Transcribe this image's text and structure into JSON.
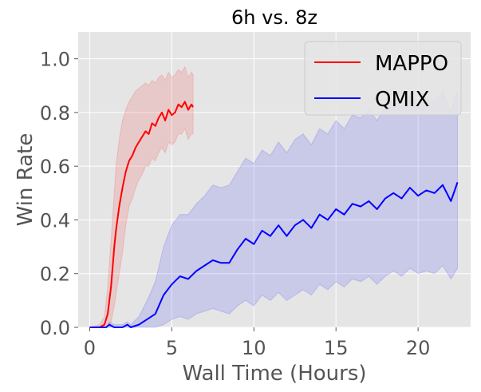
{
  "chart_data": {
    "type": "line",
    "title": "6h vs. 8z",
    "xlabel": "Wall Time (Hours)",
    "ylabel": "Win Rate",
    "xlim": [
      -0.7,
      23.2
    ],
    "ylim": [
      0.0,
      1.1
    ],
    "xticks": [
      0,
      5,
      10,
      15,
      20
    ],
    "yticks": [
      0.0,
      0.2,
      0.4,
      0.6,
      0.8,
      1.0
    ],
    "xtick_labels": [
      "0",
      "5",
      "10",
      "15",
      "20"
    ],
    "ytick_labels": [
      "0.0",
      "0.2",
      "0.4",
      "0.6",
      "0.8",
      "1.0"
    ],
    "grid": true,
    "legend_position": "top-right",
    "colors": {
      "background": "#e5e5e5",
      "grid": "#ffffff",
      "MAPPO": "#ff0000",
      "QMIX": "#0000ff"
    },
    "series": [
      {
        "name": "MAPPO",
        "color": "#ff0000",
        "band_color": "#ff0000",
        "x": [
          0,
          0.6,
          0.9,
          1.1,
          1.3,
          1.5,
          1.6,
          1.8,
          2.0,
          2.2,
          2.4,
          2.6,
          2.8,
          3.0,
          3.2,
          3.4,
          3.6,
          3.8,
          4.0,
          4.2,
          4.4,
          4.6,
          4.8,
          5.0,
          5.2,
          5.4,
          5.6,
          5.8,
          6.0,
          6.2,
          6.3
        ],
        "y": [
          0,
          0,
          0.01,
          0.05,
          0.15,
          0.3,
          0.36,
          0.45,
          0.52,
          0.58,
          0.62,
          0.64,
          0.67,
          0.69,
          0.71,
          0.73,
          0.72,
          0.76,
          0.75,
          0.78,
          0.8,
          0.77,
          0.81,
          0.79,
          0.8,
          0.83,
          0.82,
          0.84,
          0.81,
          0.83,
          0.82
        ],
        "lower": [
          0,
          0,
          0,
          0,
          0.02,
          0.08,
          0.12,
          0.2,
          0.28,
          0.38,
          0.45,
          0.48,
          0.52,
          0.55,
          0.57,
          0.6,
          0.6,
          0.63,
          0.62,
          0.65,
          0.67,
          0.65,
          0.69,
          0.68,
          0.69,
          0.72,
          0.72,
          0.74,
          0.7,
          0.72,
          0.72
        ],
        "upper": [
          0,
          0.01,
          0.04,
          0.15,
          0.32,
          0.5,
          0.6,
          0.7,
          0.77,
          0.81,
          0.84,
          0.86,
          0.88,
          0.89,
          0.9,
          0.91,
          0.9,
          0.92,
          0.91,
          0.93,
          0.94,
          0.92,
          0.95,
          0.93,
          0.94,
          0.96,
          0.95,
          0.97,
          0.93,
          0.95,
          0.94
        ]
      },
      {
        "name": "QMIX",
        "color": "#0000ff",
        "band_color": "#0000ff",
        "x": [
          0,
          1.0,
          1.2,
          1.5,
          2.0,
          2.3,
          2.5,
          3.0,
          3.5,
          4.0,
          4.5,
          5.0,
          5.5,
          6.0,
          6.5,
          7.0,
          7.5,
          8.0,
          8.5,
          9.0,
          9.5,
          10.0,
          10.5,
          11.0,
          11.5,
          12.0,
          12.5,
          13.0,
          13.5,
          14.0,
          14.5,
          15.0,
          15.5,
          16.0,
          16.5,
          17.0,
          17.5,
          18.0,
          18.5,
          19.0,
          19.5,
          20.0,
          20.5,
          21.0,
          21.5,
          22.0,
          22.4
        ],
        "y": [
          0,
          0,
          0.01,
          0,
          0,
          0.01,
          0,
          0.01,
          0.03,
          0.05,
          0.12,
          0.16,
          0.19,
          0.18,
          0.21,
          0.23,
          0.25,
          0.24,
          0.24,
          0.29,
          0.33,
          0.31,
          0.36,
          0.34,
          0.38,
          0.34,
          0.38,
          0.4,
          0.37,
          0.42,
          0.4,
          0.44,
          0.42,
          0.46,
          0.45,
          0.47,
          0.44,
          0.48,
          0.5,
          0.48,
          0.52,
          0.49,
          0.51,
          0.5,
          0.53,
          0.47,
          0.54
        ],
        "lower": [
          0,
          0,
          0,
          0,
          0,
          0,
          0,
          0,
          0,
          0,
          0.01,
          0.03,
          0.04,
          0.03,
          0.05,
          0.06,
          0.07,
          0.06,
          0.05,
          0.08,
          0.1,
          0.08,
          0.12,
          0.1,
          0.13,
          0.1,
          0.12,
          0.14,
          0.12,
          0.16,
          0.14,
          0.17,
          0.15,
          0.18,
          0.17,
          0.19,
          0.16,
          0.19,
          0.21,
          0.19,
          0.22,
          0.2,
          0.21,
          0.2,
          0.23,
          0.18,
          0.22
        ],
        "upper": [
          0,
          0,
          0.02,
          0.01,
          0.01,
          0.02,
          0.01,
          0.04,
          0.1,
          0.17,
          0.3,
          0.38,
          0.42,
          0.42,
          0.46,
          0.49,
          0.53,
          0.52,
          0.53,
          0.58,
          0.63,
          0.61,
          0.66,
          0.64,
          0.69,
          0.65,
          0.7,
          0.72,
          0.68,
          0.74,
          0.72,
          0.77,
          0.74,
          0.79,
          0.78,
          0.81,
          0.77,
          0.82,
          0.85,
          0.82,
          0.86,
          0.83,
          0.85,
          0.84,
          0.88,
          0.8,
          0.88
        ]
      }
    ]
  }
}
